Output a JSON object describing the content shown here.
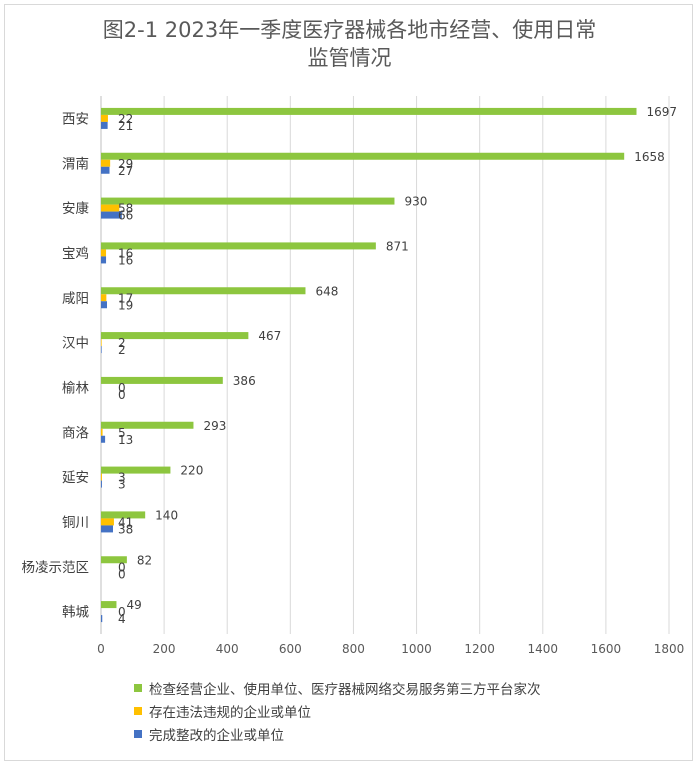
{
  "chart_data": {
    "type": "bar",
    "orientation": "horizontal",
    "title_lines": [
      "图2-1 2023年一季度医疗器械各地市经营、使用日常",
      "监管情况"
    ],
    "categories": [
      "西安",
      "渭南",
      "安康",
      "宝鸡",
      "咸阳",
      "汉中",
      "榆林",
      "商洛",
      "延安",
      "铜川",
      "杨凌示范区",
      "韩城"
    ],
    "series": [
      {
        "name": "检查经营企业、使用单位、医疗器械网络交易服务第三方平台家次",
        "color": "#8dc63f",
        "values": [
          1697,
          1658,
          930,
          871,
          648,
          467,
          386,
          293,
          220,
          140,
          82,
          49
        ]
      },
      {
        "name": "存在违法违规的企业或单位",
        "color": "#ffc000",
        "values": [
          22,
          29,
          58,
          16,
          17,
          2,
          0,
          5,
          3,
          41,
          0,
          0
        ]
      },
      {
        "name": "完成整改的企业或单位",
        "color": "#4472c4",
        "values": [
          21,
          27,
          66,
          16,
          19,
          2,
          0,
          13,
          3,
          38,
          0,
          4
        ]
      }
    ],
    "xlim": [
      0,
      1800
    ],
    "xticks": [
      0,
      200,
      400,
      600,
      800,
      1000,
      1200,
      1400,
      1600,
      1800
    ],
    "grid": "vertical",
    "legend_position": "bottom"
  }
}
